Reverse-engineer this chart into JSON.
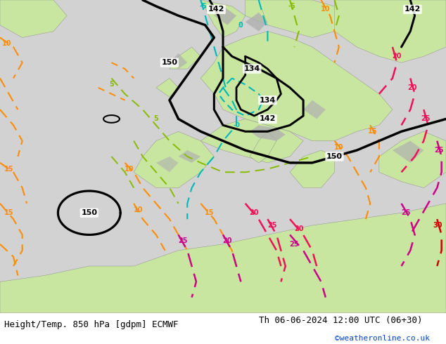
{
  "title_left": "Height/Temp. 850 hPa [gdpm] ECMWF",
  "title_right": "Th 06-06-2024 12:00 UTC (06+30)",
  "credit": "©weatheronline.co.uk",
  "sea_color": "#d2d2d2",
  "land_green": "#c8e6a0",
  "land_grey": "#a8a8a8",
  "figsize": [
    6.34,
    4.9
  ],
  "dpi": 100,
  "bottom_bg": "#e8e8e8"
}
